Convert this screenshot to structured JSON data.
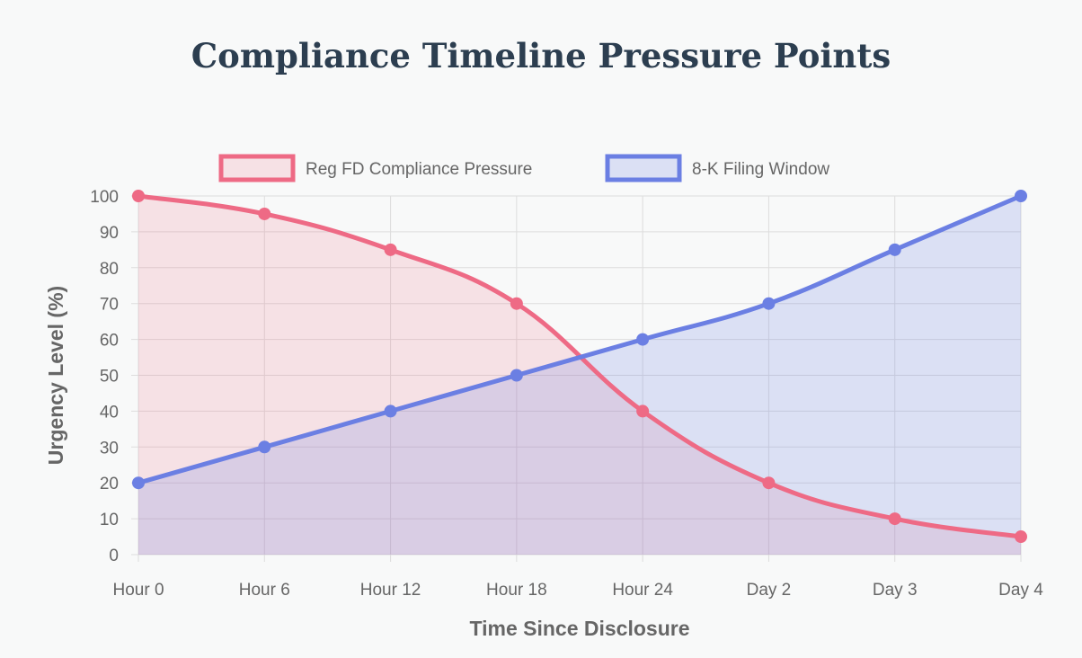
{
  "chart_data": {
    "type": "line",
    "title": "Compliance Timeline Pressure Points",
    "categories": [
      "Hour 0",
      "Hour 6",
      "Hour 12",
      "Hour 18",
      "Hour 24",
      "Day 2",
      "Day 3",
      "Day 4"
    ],
    "series": [
      {
        "name": "Reg FD Compliance Pressure",
        "values": [
          100,
          95,
          85,
          70,
          40,
          20,
          10,
          5
        ],
        "color": "#ee6a85",
        "fill": "rgba(238,106,133,0.17)"
      },
      {
        "name": "8-K Filing Window",
        "values": [
          20,
          30,
          40,
          50,
          60,
          70,
          85,
          100
        ],
        "color": "#6b7fe3",
        "fill": "rgba(107,127,227,0.2)"
      }
    ],
    "xlabel": "Time Since Disclosure",
    "ylabel": "Urgency Level (%)",
    "ylim": [
      0,
      100
    ],
    "yticks": [
      0,
      10,
      20,
      30,
      40,
      50,
      60,
      70,
      80,
      90,
      100
    ],
    "grid": true,
    "legend": "top-center"
  }
}
